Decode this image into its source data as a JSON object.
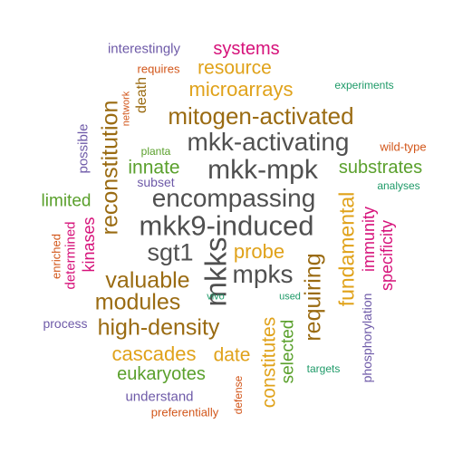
{
  "colors": {
    "brown": "#9a6b12",
    "gold": "#e0a21a",
    "green": "#5aa02c",
    "pink": "#d6127a",
    "purple": "#6e5aa8",
    "gray": "#505050",
    "orange": "#d2561a",
    "teal": "#1e9a68"
  },
  "words": [
    {
      "text": "mkk9-induced",
      "color": "gray"
    },
    {
      "text": "mkk-mpk",
      "color": "gray"
    },
    {
      "text": "mkk-activating",
      "color": "gray"
    },
    {
      "text": "encompassing",
      "color": "gray"
    },
    {
      "text": "mkks",
      "color": "gray"
    },
    {
      "text": "sgt1",
      "color": "gray"
    },
    {
      "text": "mpks",
      "color": "gray"
    },
    {
      "text": "reconstitution",
      "color": "brown"
    },
    {
      "text": "mitogen-activated",
      "color": "brown"
    },
    {
      "text": "modules",
      "color": "brown"
    },
    {
      "text": "valuable",
      "color": "brown"
    },
    {
      "text": "high-density",
      "color": "brown"
    },
    {
      "text": "requiring",
      "color": "brown"
    },
    {
      "text": "fundamental",
      "color": "gold"
    },
    {
      "text": "constitutes",
      "color": "gold"
    },
    {
      "text": "microarrays",
      "color": "gold"
    },
    {
      "text": "resource",
      "color": "gold"
    },
    {
      "text": "probe",
      "color": "gold"
    },
    {
      "text": "cascades",
      "color": "gold"
    },
    {
      "text": "date",
      "color": "gold"
    },
    {
      "text": "innate",
      "color": "green"
    },
    {
      "text": "substrates",
      "color": "green"
    },
    {
      "text": "limited",
      "color": "green"
    },
    {
      "text": "eukaryotes",
      "color": "green"
    },
    {
      "text": "selected",
      "color": "green"
    },
    {
      "text": "planta",
      "color": "green"
    },
    {
      "text": "systems",
      "color": "pink"
    },
    {
      "text": "kinases",
      "color": "pink"
    },
    {
      "text": "specificity",
      "color": "pink"
    },
    {
      "text": "immunity",
      "color": "pink"
    },
    {
      "text": "determined",
      "color": "pink"
    },
    {
      "text": "death",
      "color": "brown"
    },
    {
      "text": "interestingly",
      "color": "purple"
    },
    {
      "text": "possible",
      "color": "purple"
    },
    {
      "text": "subset",
      "color": "purple"
    },
    {
      "text": "process",
      "color": "purple"
    },
    {
      "text": "understand",
      "color": "purple"
    },
    {
      "text": "phosphorylation",
      "color": "purple"
    },
    {
      "text": "requires",
      "color": "orange"
    },
    {
      "text": "network",
      "color": "orange"
    },
    {
      "text": "wild-type",
      "color": "orange"
    },
    {
      "text": "enriched",
      "color": "orange"
    },
    {
      "text": "defense",
      "color": "orange"
    },
    {
      "text": "preferentially",
      "color": "orange"
    },
    {
      "text": "experiments",
      "color": "teal"
    },
    {
      "text": "analyses",
      "color": "teal"
    },
    {
      "text": "vivo",
      "color": "teal"
    },
    {
      "text": "used",
      "color": "teal"
    },
    {
      "text": "targets",
      "color": "teal"
    }
  ]
}
